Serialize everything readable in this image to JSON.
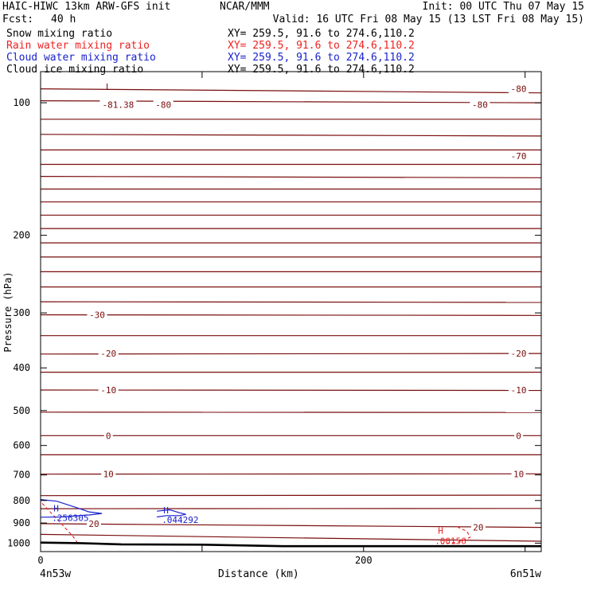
{
  "header": {
    "model": "HAIC-HIWC 13km ARW-GFS init",
    "org": "NCAR/MMM",
    "init": "Init: 00 UTC Thu 07 May 15",
    "fcst_label": "Fcst:",
    "fcst_value": "40 h",
    "valid": "Valid: 16 UTC Fri 08 May 15 (13 LST Fri 08 May 15)",
    "fields": [
      {
        "name": "Snow mixing ratio",
        "xy": "XY= 259.5, 91.6 to 274.6,110.2",
        "color": "#000000"
      },
      {
        "name": "Rain water mixing ratio",
        "xy": "XY= 259.5, 91.6 to 274.6,110.2",
        "color": "#ee2222"
      },
      {
        "name": "Cloud water mixing ratio",
        "xy": "XY= 259.5, 91.6 to 274.6,110.2",
        "color": "#1a22cc"
      },
      {
        "name": "Cloud ice mixing ratio",
        "xy": "XY= 259.5, 91.6 to 274.6,110.2",
        "color": "#000000"
      }
    ]
  },
  "chart_data": {
    "type": "contour cross-section",
    "xlabel": "Distance (km)",
    "ylabel": "Pressure (hPa)",
    "xlim": [
      0,
      310
    ],
    "ylim": [
      1045,
      85
    ],
    "y_scale": "log",
    "x_ticks": [
      0,
      100,
      200,
      300
    ],
    "x_tick_labels": [
      "0",
      "",
      "200",
      ""
    ],
    "y_ticks": [
      100,
      200,
      300,
      400,
      500,
      600,
      700,
      800,
      900,
      1000
    ],
    "endpoint_labels": {
      "left": "4n53w",
      "right": "6n51w"
    },
    "colors": {
      "temperature": "#7a0c0c",
      "rain": "#ee2222",
      "cloud_water": "#1a22cc",
      "terrain": "#000000"
    },
    "temperature_contours": [
      {
        "p": [
          93,
          95
        ],
        "label": "-80"
      },
      {
        "p": [
          99,
          100
        ],
        "label": "-80"
      },
      {
        "p": [
          109,
          109
        ]
      },
      {
        "p": [
          118,
          119
        ]
      },
      {
        "p": [
          128,
          128
        ]
      },
      {
        "p": [
          138,
          138
        ]
      },
      {
        "p": [
          147,
          148
        ]
      },
      {
        "p": [
          157,
          157
        ]
      },
      {
        "p": [
          168,
          168
        ]
      },
      {
        "p": [
          180,
          180
        ]
      },
      {
        "p": [
          193,
          193
        ]
      },
      {
        "p": [
          208,
          208
        ]
      },
      {
        "p": [
          224,
          224
        ]
      },
      {
        "p": [
          242,
          242
        ]
      },
      {
        "p": [
          262,
          262
        ]
      },
      {
        "p": [
          283,
          284
        ]
      },
      {
        "p": [
          303,
          304
        ],
        "label": "-30"
      },
      {
        "p": [
          338,
          338
        ]
      },
      {
        "p": [
          372,
          371
        ],
        "label": "-20"
      },
      {
        "p": [
          409,
          409
        ]
      },
      {
        "p": [
          449,
          450
        ],
        "label": "-10"
      },
      {
        "p": [
          504,
          505
        ]
      },
      {
        "p": [
          570,
          570
        ],
        "label": "0"
      },
      {
        "p": [
          630,
          630
        ]
      },
      {
        "p": [
          697,
          696
        ],
        "label": "10"
      },
      {
        "p": [
          780,
          778
        ]
      },
      {
        "p": [
          835,
          834
        ]
      },
      {
        "p": [
          903,
          921
        ],
        "label": "20"
      },
      {
        "p": [
          955,
          990
        ]
      }
    ],
    "temperature_labels": [
      {
        "x": 48,
        "p": 101,
        "text": "-81.38"
      },
      {
        "x": 76,
        "p": 101,
        "text": "-80"
      },
      {
        "x": 272,
        "p": 101,
        "text": "-80"
      },
      {
        "x": 296,
        "p": 93,
        "text": "-80"
      },
      {
        "x": 296,
        "p": 132,
        "text": "-70"
      },
      {
        "x": 35,
        "p": 303,
        "text": "-30"
      },
      {
        "x": 42,
        "p": 371,
        "text": "-20"
      },
      {
        "x": 296,
        "p": 371,
        "text": "-20"
      },
      {
        "x": 42,
        "p": 449,
        "text": "-10"
      },
      {
        "x": 296,
        "p": 449,
        "text": "-10"
      },
      {
        "x": 42,
        "p": 570,
        "text": "0"
      },
      {
        "x": 296,
        "p": 570,
        "text": "0"
      },
      {
        "x": 42,
        "p": 697,
        "text": "10"
      },
      {
        "x": 296,
        "p": 697,
        "text": "10"
      },
      {
        "x": 33,
        "p": 903,
        "text": "20"
      },
      {
        "x": 271,
        "p": 921,
        "text": "20"
      }
    ],
    "low_marker": {
      "x": 42,
      "p": 92,
      "text": "L"
    },
    "cloud_water_max": [
      {
        "x": 7,
        "p": 858,
        "value": ".256305"
      },
      {
        "x": 75,
        "p": 867,
        "value": ".044292"
      }
    ],
    "rain_max": {
      "x": 247,
      "p": 968,
      "value": ".00156"
    },
    "terrain": [
      [
        0,
        997
      ],
      [
        25,
        1000
      ],
      [
        50,
        1006
      ],
      [
        100,
        1008
      ],
      [
        150,
        1016
      ],
      [
        200,
        1016
      ],
      [
        250,
        1016
      ],
      [
        310,
        1016
      ]
    ]
  }
}
